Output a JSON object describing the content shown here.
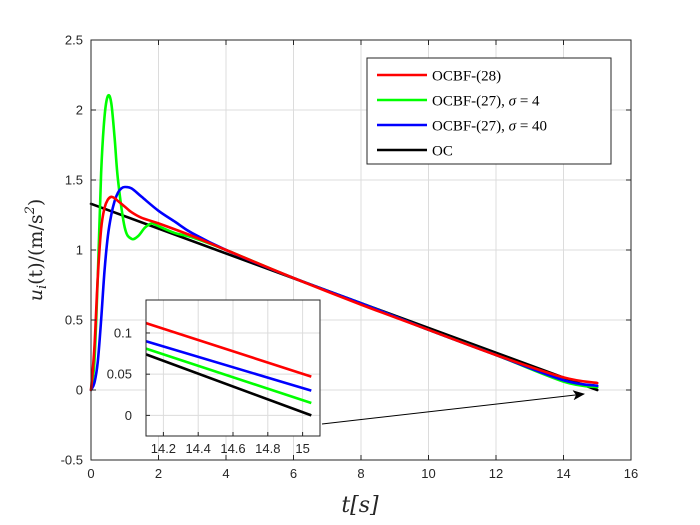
{
  "chart_data": {
    "type": "line",
    "title": "",
    "xlabel": "t[s]",
    "ylabel": "u_i(t)/(m/s^2)",
    "xlim": [
      0,
      16
    ],
    "ylim": [
      -0.5,
      2.5
    ],
    "xticks": [
      "0",
      "2",
      "4",
      "6",
      "8",
      "10",
      "12",
      "14",
      "16"
    ],
    "yticks": [
      "-0.5",
      "0",
      "0.5",
      "1",
      "1.5",
      "2",
      "2.5"
    ],
    "grid": true,
    "legend_position": "top-right",
    "series": [
      {
        "name": "OCBF-(28)",
        "color": "#ff0000",
        "x": [
          0,
          0.1,
          0.2,
          0.3,
          0.4,
          0.5,
          0.6,
          0.7,
          0.8,
          1.0,
          1.2,
          1.5,
          2,
          3,
          4,
          6,
          8,
          10,
          12,
          14,
          15
        ],
        "y": [
          0,
          0.3,
          0.8,
          1.15,
          1.3,
          1.36,
          1.38,
          1.37,
          1.35,
          1.31,
          1.27,
          1.23,
          1.19,
          1.1,
          1.0,
          0.8,
          0.61,
          0.43,
          0.25,
          0.09,
          0.05
        ]
      },
      {
        "name": "OCBF-(27), σ = 4",
        "color": "#00ff00",
        "x": [
          0,
          0.1,
          0.2,
          0.3,
          0.4,
          0.5,
          0.6,
          0.7,
          0.8,
          1.0,
          1.2,
          1.4,
          1.6,
          1.8,
          2.0,
          2.5,
          3,
          4,
          6,
          8,
          10,
          12,
          14,
          15
        ],
        "y": [
          0,
          0.2,
          0.8,
          1.55,
          1.95,
          2.1,
          2.05,
          1.8,
          1.5,
          1.16,
          1.08,
          1.1,
          1.16,
          1.19,
          1.17,
          1.12,
          1.09,
          1.0,
          0.8,
          0.62,
          0.43,
          0.25,
          0.06,
          0.02
        ]
      },
      {
        "name": "OCBF-(27), σ = 40",
        "color": "#0000ff",
        "x": [
          0,
          0.1,
          0.2,
          0.3,
          0.4,
          0.5,
          0.6,
          0.7,
          0.8,
          0.9,
          1.0,
          1.2,
          1.5,
          2.0,
          2.5,
          3,
          4,
          6,
          8,
          10,
          12,
          14,
          15
        ],
        "y": [
          0,
          0.05,
          0.2,
          0.5,
          0.85,
          1.1,
          1.25,
          1.35,
          1.41,
          1.44,
          1.45,
          1.44,
          1.38,
          1.28,
          1.2,
          1.12,
          1.0,
          0.8,
          0.62,
          0.43,
          0.25,
          0.07,
          0.03
        ]
      },
      {
        "name": "OC",
        "color": "#000000",
        "x": [
          0,
          15
        ],
        "y": [
          1.33,
          0.0
        ]
      }
    ],
    "inset": {
      "xlim": [
        14.1,
        15.1
      ],
      "ylim": [
        -0.025,
        0.14
      ],
      "xticks": [
        "14.2",
        "14.4",
        "14.6",
        "14.8",
        "15"
      ],
      "yticks": [
        "0",
        "0.05",
        "0.1"
      ],
      "series": [
        {
          "name": "OCBF-(28)",
          "color": "#ff0000",
          "x": [
            14.1,
            15.05
          ],
          "y": [
            0.112,
            0.047
          ]
        },
        {
          "name": "OCBF-(27), σ = 4",
          "color": "#00ff00",
          "x": [
            14.1,
            15.05
          ],
          "y": [
            0.081,
            0.015
          ]
        },
        {
          "name": "OCBF-(27), σ = 40",
          "color": "#0000ff",
          "x": [
            14.1,
            15.05
          ],
          "y": [
            0.09,
            0.03
          ]
        },
        {
          "name": "OC",
          "color": "#000000",
          "x": [
            14.1,
            15.05
          ],
          "y": [
            0.074,
            0.0
          ]
        }
      ]
    }
  }
}
